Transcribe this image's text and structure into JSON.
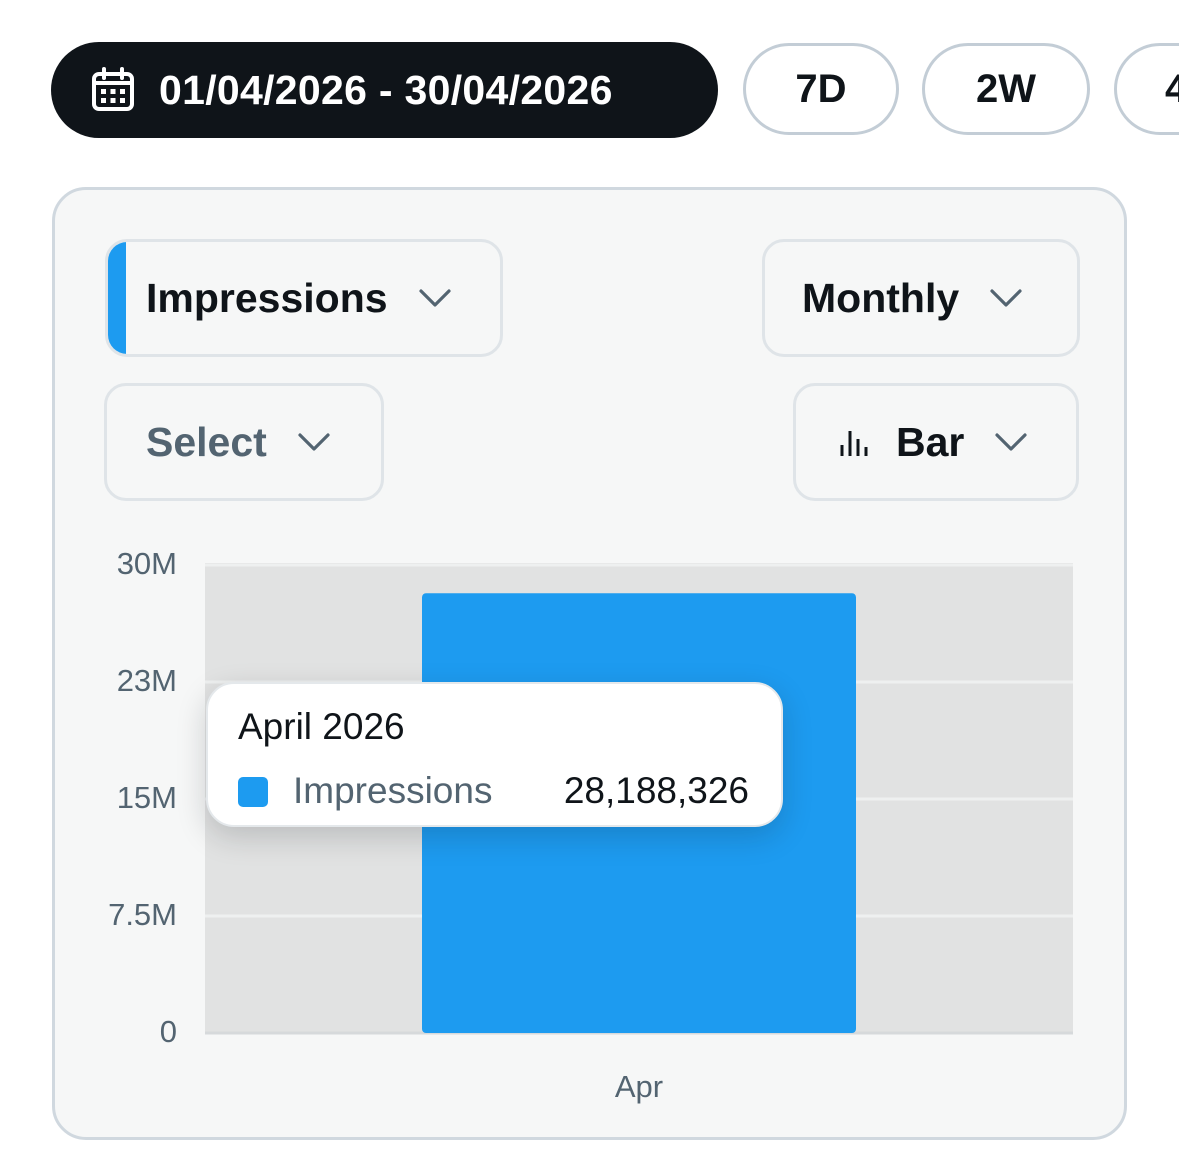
{
  "date_range": {
    "label": "01/04/2026 - 30/04/2026",
    "icon": "calendar-icon"
  },
  "range_presets": [
    {
      "label": "7D"
    },
    {
      "label": "2W"
    },
    {
      "label": "4"
    }
  ],
  "controls": {
    "metric": {
      "label": "Impressions",
      "accent_color": "#1d9bf0",
      "icon": "chevron-down-icon"
    },
    "interval": {
      "label": "Monthly",
      "icon": "chevron-down-icon"
    },
    "compare": {
      "label": "Select",
      "icon": "chevron-down-icon"
    },
    "chart_type": {
      "label": "Bar",
      "icon": "bar-chart-icon"
    }
  },
  "chart_data": {
    "type": "bar",
    "categories": [
      "Apr"
    ],
    "series": [
      {
        "name": "Impressions",
        "values": [
          28188326
        ],
        "color": "#1d9bf0"
      }
    ],
    "ylim": [
      0,
      30000000
    ],
    "y_ticks": [
      {
        "value": 0,
        "label": "0"
      },
      {
        "value": 7500000,
        "label": "7.5M"
      },
      {
        "value": 15000000,
        "label": "15M"
      },
      {
        "value": 22500000,
        "label": "23M"
      },
      {
        "value": 30000000,
        "label": "30M"
      }
    ],
    "grid": true,
    "plot_background": "#e1e2e2",
    "grid_color": "#eef0f0"
  },
  "tooltip": {
    "title": "April 2026",
    "series_name": "Impressions",
    "value": "28,188,326",
    "swatch_color": "#1d9bf0"
  }
}
